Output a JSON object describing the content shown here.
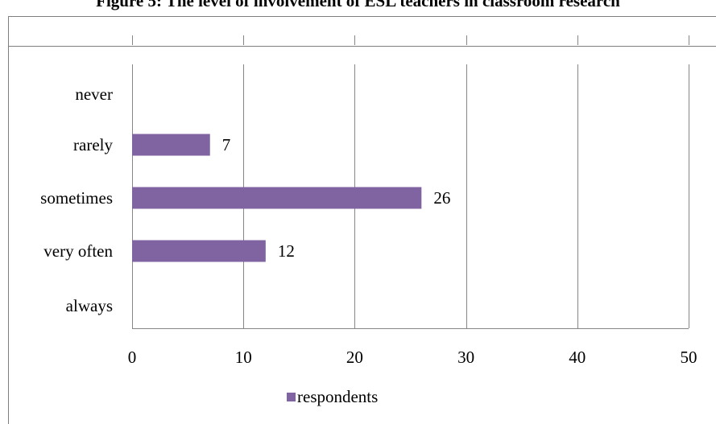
{
  "chart_data": {
    "type": "bar",
    "orientation": "horizontal",
    "title": "Figure 5: The level of involvement of ESL teachers in classroom research",
    "categories": [
      "never",
      "rarely",
      "sometimes",
      "very often",
      "always"
    ],
    "series": [
      {
        "name": "respondents",
        "values": [
          0,
          7,
          26,
          12,
          0
        ],
        "color": "#8064A2"
      }
    ],
    "xlim": [
      0,
      50
    ],
    "x_ticks": [
      0,
      10,
      20,
      30,
      40,
      50
    ],
    "data_labels": [
      "",
      "7",
      "26",
      "12",
      ""
    ],
    "grid": true,
    "legend": "bottom"
  }
}
